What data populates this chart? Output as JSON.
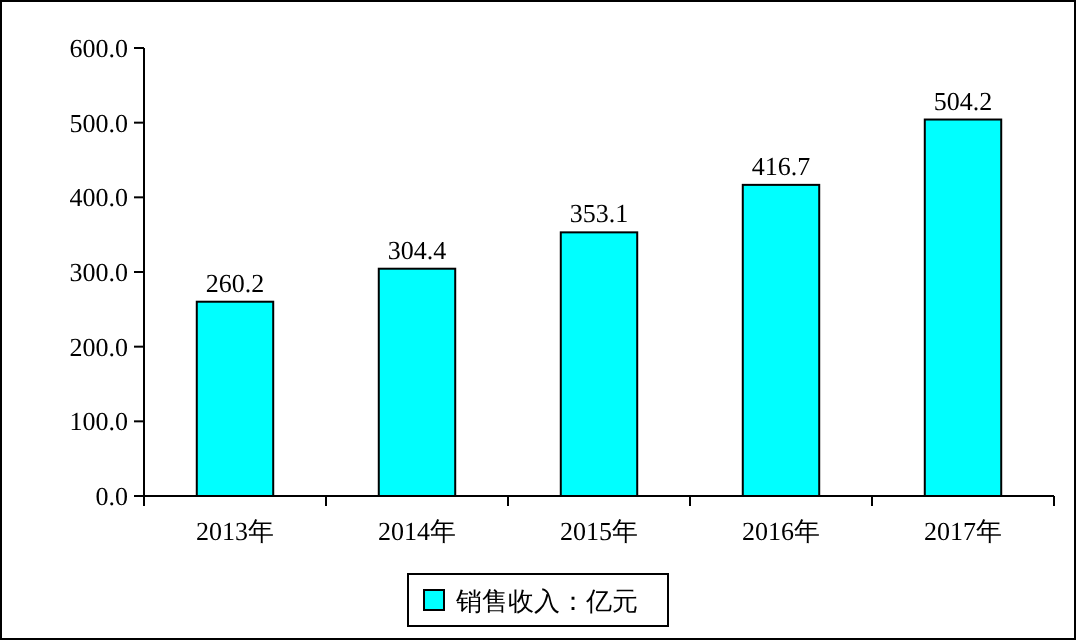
{
  "chart_data": {
    "type": "bar",
    "categories": [
      "2013年",
      "2014年",
      "2015年",
      "2016年",
      "2017年"
    ],
    "series": [
      {
        "name": "销售收入：亿元",
        "color": "#00ffff",
        "values": [
          260.2,
          304.4,
          353.1,
          416.7,
          504.2
        ]
      }
    ],
    "ylim": [
      0,
      600
    ],
    "yticks": [
      {
        "value": 0,
        "label": "0.0"
      },
      {
        "value": 100,
        "label": "100.0"
      },
      {
        "value": 200,
        "label": "200.0"
      },
      {
        "value": 300,
        "label": "300.0"
      },
      {
        "value": 400,
        "label": "400.0"
      },
      {
        "value": 500,
        "label": "500.0"
      },
      {
        "value": 600,
        "label": "600.0"
      }
    ],
    "data_labels": true,
    "legend": "bottom",
    "grid": false
  }
}
